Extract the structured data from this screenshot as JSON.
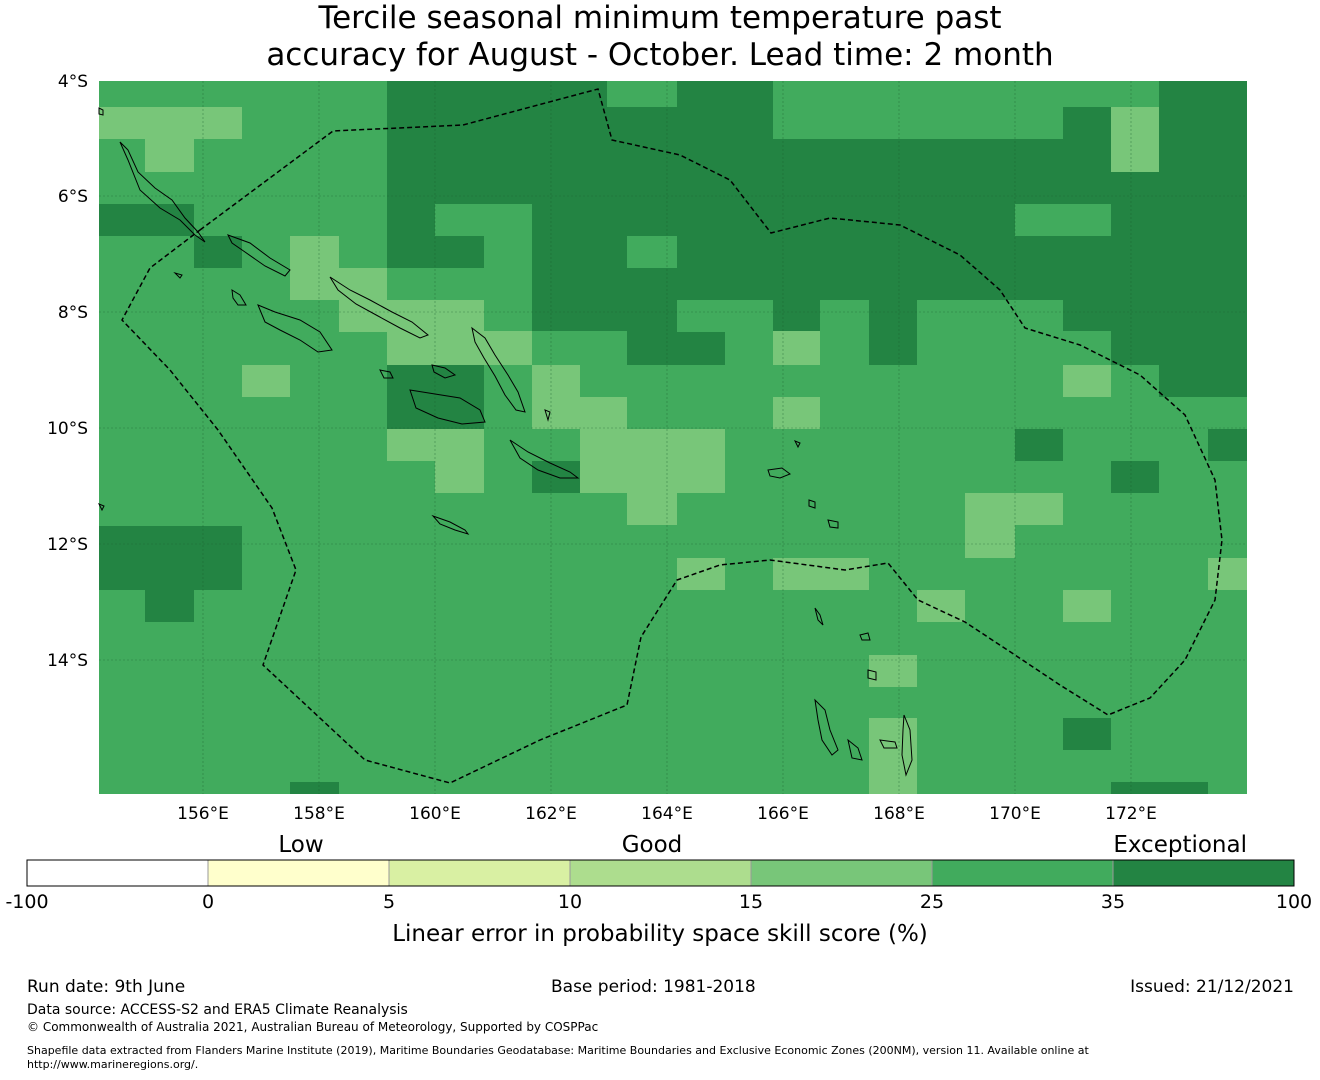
{
  "title_line1": "Tercile seasonal minimum temperature past",
  "title_line2": "accuracy for August - October. Lead time: 2 month",
  "map": {
    "lon_ticks": [
      "156°E",
      "158°E",
      "160°E",
      "162°E",
      "164°E",
      "166°E",
      "168°E",
      "170°E",
      "172°E"
    ],
    "lat_ticks": [
      "4°S",
      "6°S",
      "8°S",
      "10°S",
      "12°S",
      "14°S"
    ],
    "colors": {
      "class_25_35": "#41ab5d",
      "class_35_100": "#238443",
      "class_15_25": "#78c679",
      "land_outline": "#000000",
      "boundary": "#000000"
    }
  },
  "colorbar": {
    "category_labels": [
      "Low",
      "Good",
      "Exceptional"
    ],
    "boundaries": [
      "-100",
      "0",
      "5",
      "10",
      "15",
      "25",
      "35",
      "100"
    ],
    "colors": [
      "#ffffff",
      "#ffffcc",
      "#d9f0a3",
      "#addd8e",
      "#78c679",
      "#41ab5d",
      "#238443"
    ],
    "label": "Linear error in probability space skill score (%)"
  },
  "footer": {
    "run_date": "Run date: 9th June",
    "base_period": "Base period: 1981-2018",
    "issued": "Issued: 21/12/2021",
    "data_source": "Data source: ACCESS-S2 and ERA5 Climate Reanalysis",
    "copyright": "© Commonwealth of Australia 2021, Australian Bureau of Meteorology, Supported by COSPPac",
    "shapefile_line1": "Shapefile data extracted from Flanders Marine Institute (2019), Maritime Boundaries Geodatabase: Maritime Boundaries and Exclusive Economic Zones (200NM), version 11. Available online at",
    "shapefile_line2": "http://www.marineregions.org/."
  }
}
